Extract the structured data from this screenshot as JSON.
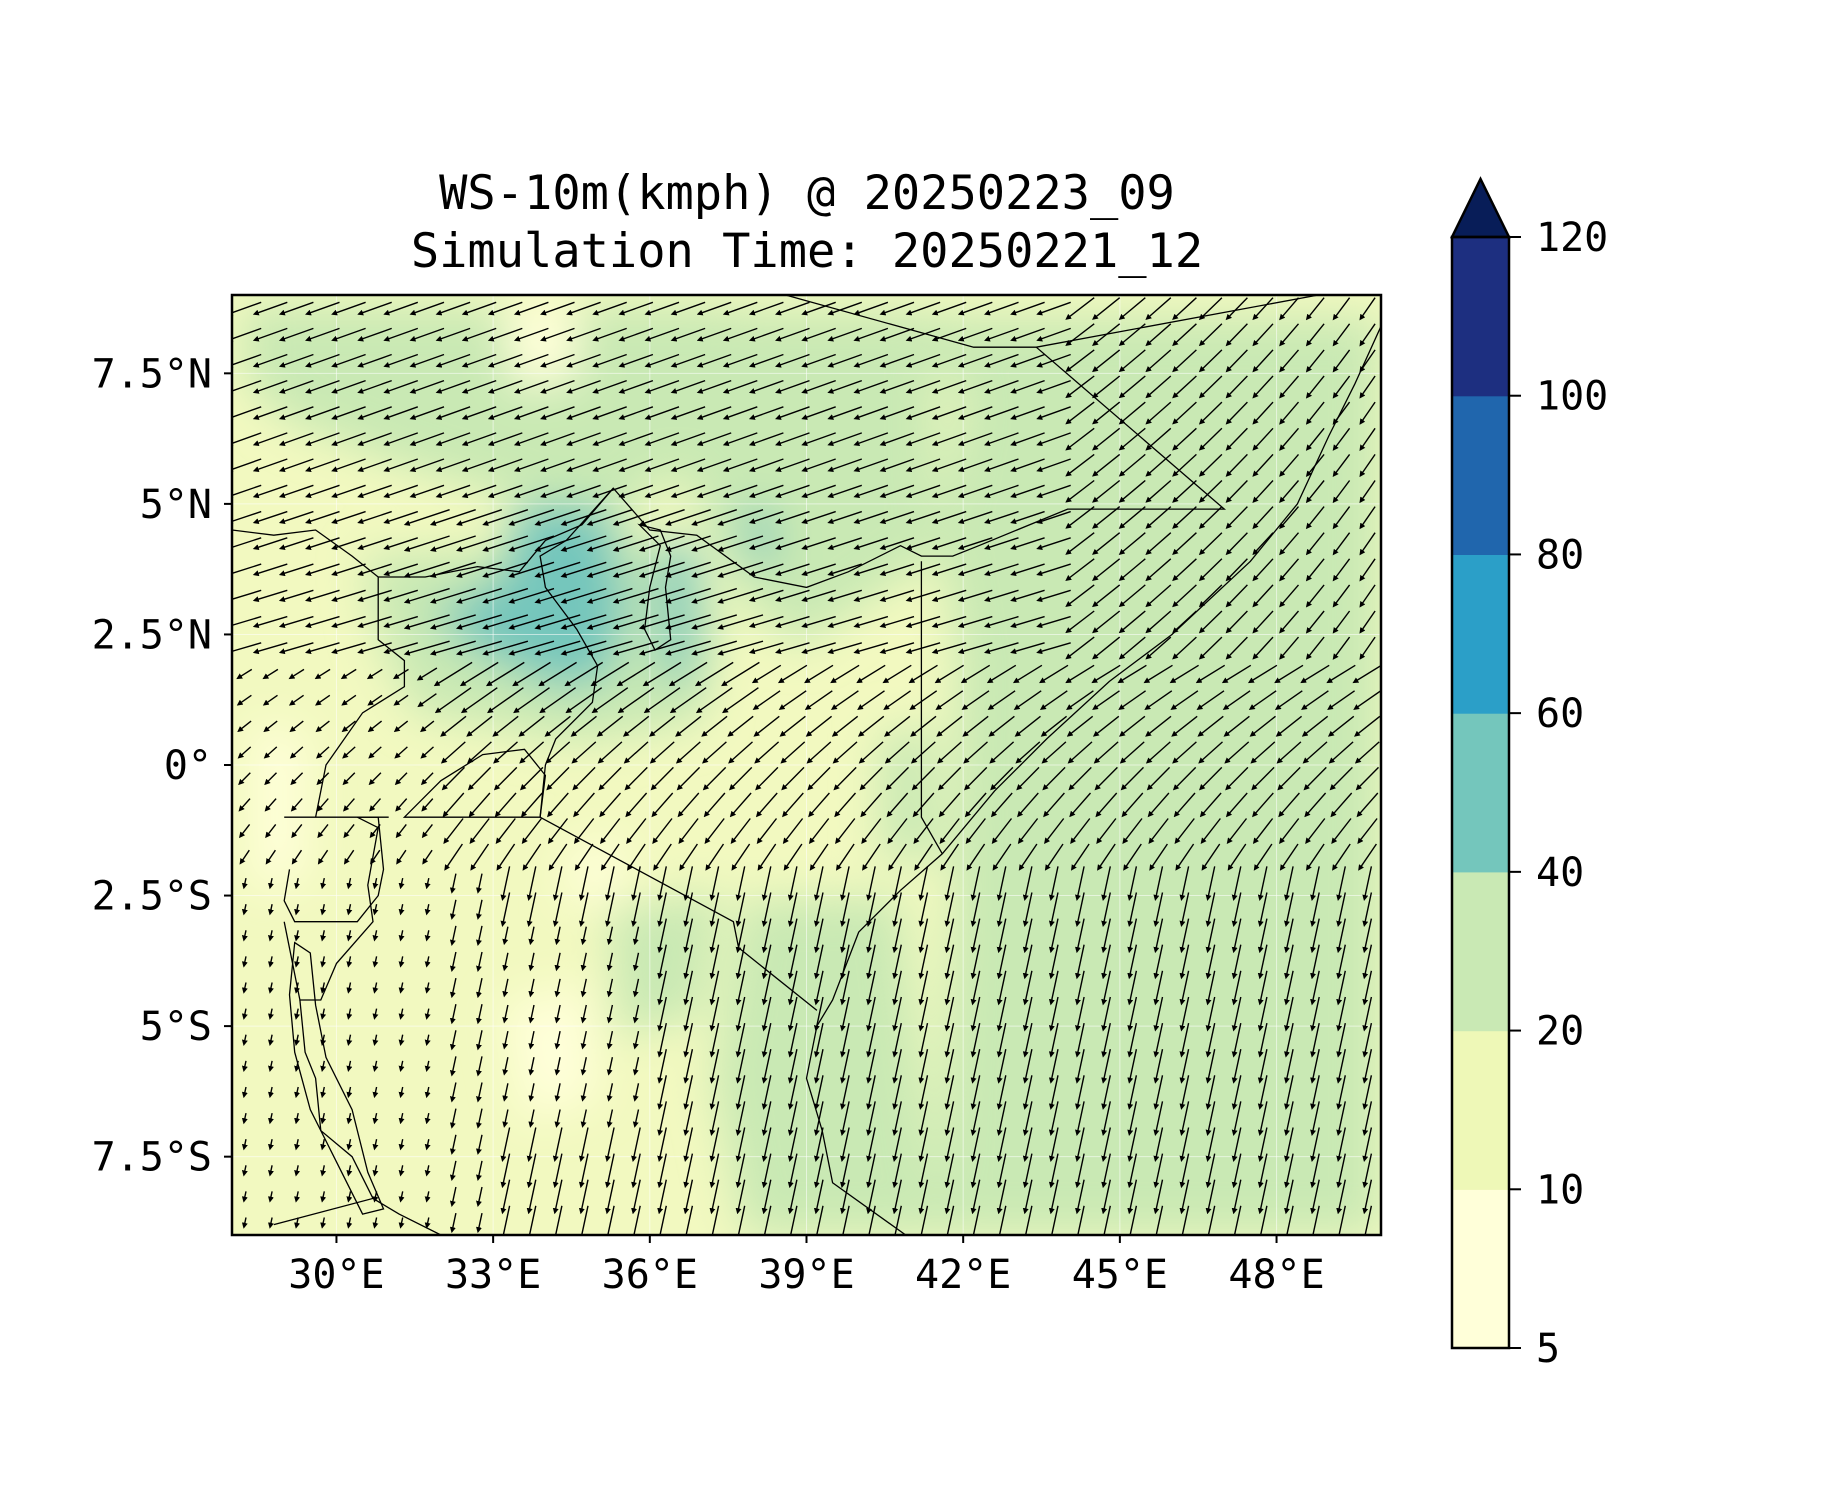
{
  "title_lines": [
    "WS-10m(kmph) @ 20250223_09",
    "Simulation Time: 20250221_12"
  ],
  "map": {
    "lon_range": [
      28,
      50
    ],
    "lat_range": [
      -9,
      9
    ],
    "lon_ticks": [
      {
        "value": 30,
        "label": "30°E"
      },
      {
        "value": 33,
        "label": "33°E"
      },
      {
        "value": 36,
        "label": "36°E"
      },
      {
        "value": 39,
        "label": "39°E"
      },
      {
        "value": 42,
        "label": "42°E"
      },
      {
        "value": 45,
        "label": "45°E"
      },
      {
        "value": 48,
        "label": "48°E"
      }
    ],
    "lat_ticks": [
      {
        "value": 7.5,
        "label": "7.5°N"
      },
      {
        "value": 5,
        "label": "5°N"
      },
      {
        "value": 2.5,
        "label": "2.5°N"
      },
      {
        "value": 0,
        "label": "0°"
      },
      {
        "value": -2.5,
        "label": "2.5°S"
      },
      {
        "value": -5,
        "label": "5°S"
      },
      {
        "value": -7.5,
        "label": "7.5°S"
      }
    ],
    "borders": [
      [
        [
          38.6,
          9.0
        ],
        [
          42.2,
          8.0
        ],
        [
          43.4,
          8.0
        ]
      ],
      [
        [
          48.8,
          9.0
        ],
        [
          43.4,
          8.0
        ],
        [
          47.0,
          4.9
        ],
        [
          44.0,
          4.9
        ],
        [
          42.3,
          4.2
        ],
        [
          41.8,
          4.0
        ],
        [
          41.2,
          4.0
        ],
        [
          40.8,
          4.2
        ],
        [
          39.8,
          3.7
        ],
        [
          39.0,
          3.4
        ],
        [
          38.0,
          3.6
        ],
        [
          36.9,
          4.4
        ],
        [
          36.0,
          4.5
        ],
        [
          35.3,
          5.3
        ],
        [
          34.7,
          4.6
        ],
        [
          34.0,
          4.3
        ],
        [
          33.5,
          3.7
        ],
        [
          32.7,
          3.8
        ],
        [
          31.7,
          3.6
        ],
        [
          30.8,
          3.6
        ],
        [
          30.3,
          4.0
        ],
        [
          29.6,
          4.5
        ],
        [
          28.8,
          4.4
        ],
        [
          28.0,
          4.5
        ]
      ],
      [
        [
          41.2,
          3.9
        ],
        [
          41.2,
          -1.0
        ],
        [
          41.6,
          -1.7
        ]
      ],
      [
        [
          35.3,
          5.3
        ],
        [
          34.4,
          4.3
        ],
        [
          33.9,
          4.0
        ],
        [
          34.0,
          3.4
        ],
        [
          34.6,
          2.6
        ],
        [
          35.0,
          1.9
        ],
        [
          34.9,
          1.2
        ],
        [
          34.2,
          0.5
        ],
        [
          34.0,
          0.0
        ],
        [
          33.9,
          -1.0
        ]
      ],
      [
        [
          30.8,
          3.6
        ],
        [
          30.8,
          2.4
        ],
        [
          31.3,
          2.0
        ],
        [
          31.3,
          1.5
        ],
        [
          30.5,
          1.0
        ],
        [
          29.8,
          0.0
        ],
        [
          29.6,
          -1.0
        ]
      ],
      [
        [
          33.9,
          -1.0
        ],
        [
          37.6,
          -3.0
        ],
        [
          37.7,
          -3.5
        ],
        [
          39.2,
          -4.7
        ]
      ],
      [
        [
          30.4,
          -1.0
        ],
        [
          31.0,
          -1.0
        ]
      ],
      [
        [
          29.0,
          -1.0
        ],
        [
          30.8,
          -1.0
        ],
        [
          30.9,
          -2.0
        ],
        [
          30.8,
          -2.5
        ],
        [
          30.4,
          -3.0
        ],
        [
          29.2,
          -3.0
        ],
        [
          29.0,
          -2.6
        ],
        [
          29.1,
          -2.0
        ]
      ],
      [
        [
          30.4,
          -1.0
        ],
        [
          30.8,
          -1.2
        ],
        [
          30.6,
          -2.3
        ],
        [
          30.7,
          -3.0
        ],
        [
          30.0,
          -3.8
        ],
        [
          29.7,
          -4.5
        ],
        [
          29.3,
          -4.5
        ],
        [
          29.0,
          -3.0
        ]
      ],
      [
        [
          29.3,
          -4.5
        ],
        [
          29.4,
          -5.5
        ],
        [
          29.6,
          -6.0
        ],
        [
          29.7,
          -7.0
        ],
        [
          30.3,
          -7.5
        ],
        [
          30.7,
          -8.3
        ]
      ],
      [
        [
          28.8,
          -8.8
        ],
        [
          30.7,
          -8.3
        ],
        [
          31.2,
          -8.6
        ],
        [
          32.0,
          -9.0
        ]
      ]
    ],
    "coastline": [
      [
        40.9,
        -9.0
      ],
      [
        39.5,
        -8.0
      ],
      [
        39.3,
        -7.0
      ],
      [
        39.0,
        -6.0
      ],
      [
        39.2,
        -5.0
      ],
      [
        39.5,
        -4.5
      ],
      [
        40.0,
        -3.2
      ],
      [
        40.8,
        -2.4
      ],
      [
        41.6,
        -1.7
      ],
      [
        42.6,
        -0.5
      ],
      [
        43.6,
        0.5
      ],
      [
        44.8,
        1.6
      ],
      [
        46.0,
        2.5
      ],
      [
        47.5,
        3.9
      ],
      [
        48.4,
        5.0
      ],
      [
        49.0,
        6.3
      ],
      [
        49.5,
        7.3
      ],
      [
        50.0,
        8.4
      ]
    ],
    "lakes": [
      [
        [
          31.3,
          -1.0
        ],
        [
          33.9,
          -1.0
        ],
        [
          34.0,
          -0.2
        ],
        [
          33.6,
          0.3
        ],
        [
          32.8,
          0.2
        ],
        [
          32.0,
          -0.3
        ],
        [
          31.7,
          -0.6
        ]
      ],
      [
        [
          35.8,
          4.6
        ],
        [
          36.2,
          4.2
        ],
        [
          36.0,
          3.4
        ],
        [
          35.9,
          2.6
        ],
        [
          36.1,
          2.2
        ],
        [
          36.4,
          2.4
        ],
        [
          36.3,
          3.4
        ],
        [
          36.4,
          4.0
        ],
        [
          36.2,
          4.5
        ]
      ],
      [
        [
          29.2,
          -3.4
        ],
        [
          29.5,
          -3.6
        ],
        [
          29.6,
          -4.6
        ],
        [
          29.8,
          -5.6
        ],
        [
          30.3,
          -6.6
        ],
        [
          30.6,
          -7.8
        ],
        [
          30.9,
          -8.5
        ],
        [
          30.5,
          -8.6
        ],
        [
          30.0,
          -7.6
        ],
        [
          29.5,
          -6.6
        ],
        [
          29.2,
          -5.5
        ],
        [
          29.1,
          -4.4
        ]
      ]
    ]
  },
  "colorbar": {
    "levels": [
      5,
      10,
      20,
      40,
      60,
      80,
      100,
      120
    ],
    "tick_labels": [
      "5",
      "10",
      "20",
      "40",
      "60",
      "80",
      "100",
      "120"
    ],
    "colors": [
      "#ffffd9",
      "#eef8b7",
      "#c9e9b4",
      "#74c6bc",
      "#2b9fc8",
      "#2066ad",
      "#1d2f80",
      "#081d58"
    ]
  }
}
